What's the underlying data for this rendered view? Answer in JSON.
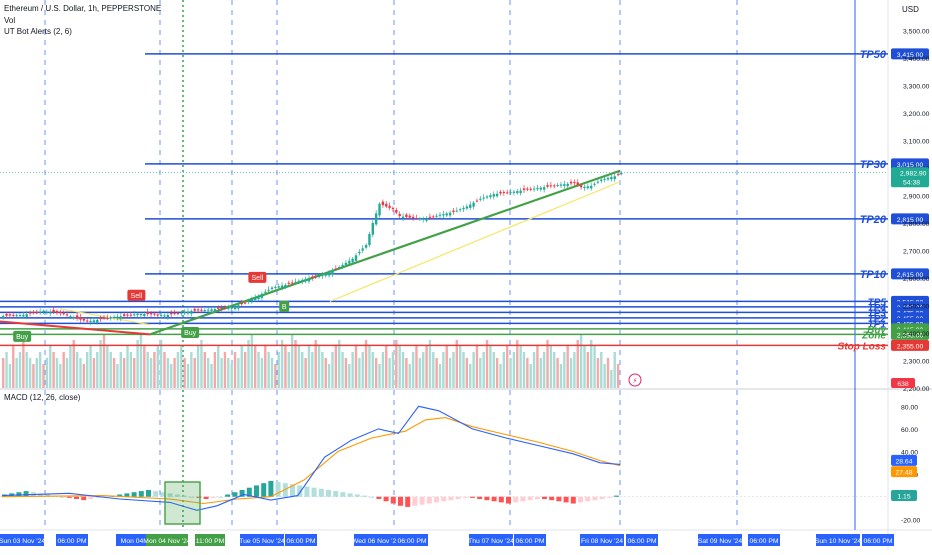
{
  "header": {
    "symbol": "Ethereum / U.S. Dollar, 1h, PEPPERSTONE",
    "vol": "Vol",
    "indicator": "UT Bot Alerts (2, 6)",
    "currency": "USD"
  },
  "chart_data": [
    {
      "type": "line",
      "title": "Ethereum / U.S. Dollar, 1h, PEPPERSTONE",
      "ylim": [
        2200,
        3560
      ],
      "y_ticks": [
        "3,500.00",
        "3,400.00",
        "3,300.00",
        "3,200.00",
        "3,100.00",
        "3,000.00",
        "2,900.00",
        "2,800.00",
        "2,700.00",
        "2,600.00",
        "2,500.00",
        "2,400.00",
        "2,300.00",
        "2,200.00"
      ],
      "x_labels": [
        "Sun 03 Nov '24",
        "06:00 PM",
        "Mon 04",
        "Mon 04 Nov '24",
        "11:00 PM",
        "Tue 05 Nov '24",
        "06:00 PM",
        "Wed 06 Nov '24",
        "06:00 PM",
        "Thu 07 Nov '24",
        "06:00 PM",
        "Fri 08 Nov '24",
        "06:00 PM",
        "Sat 09 Nov '24",
        "06:00 PM",
        "Sun 10 Nov '24",
        "06:00 PM"
      ],
      "price_series": [
        [
          0,
          2462
        ],
        [
          6,
          2466
        ],
        [
          12,
          2480
        ],
        [
          18,
          2470
        ],
        [
          22,
          2452
        ],
        [
          25,
          2442
        ],
        [
          28,
          2448
        ],
        [
          32,
          2457
        ],
        [
          36,
          2462
        ],
        [
          40,
          2470
        ],
        [
          44,
          2468
        ],
        [
          48,
          2464
        ],
        [
          52,
          2472
        ],
        [
          56,
          2480
        ],
        [
          60,
          2484
        ],
        [
          64,
          2488
        ],
        [
          68,
          2492
        ],
        [
          72,
          2510
        ],
        [
          76,
          2535
        ],
        [
          80,
          2565
        ],
        [
          84,
          2575
        ],
        [
          88,
          2590
        ],
        [
          92,
          2600
        ],
        [
          96,
          2614
        ],
        [
          100,
          2640
        ],
        [
          104,
          2670
        ],
        [
          108,
          2720
        ],
        [
          110,
          2800
        ],
        [
          112,
          2870
        ],
        [
          114,
          2860
        ],
        [
          116,
          2850
        ],
        [
          118,
          2825
        ],
        [
          122,
          2818
        ],
        [
          126,
          2815
        ],
        [
          130,
          2830
        ],
        [
          134,
          2840
        ],
        [
          138,
          2860
        ],
        [
          142,
          2888
        ],
        [
          146,
          2905
        ],
        [
          150,
          2910
        ],
        [
          154,
          2918
        ],
        [
          158,
          2925
        ],
        [
          162,
          2932
        ],
        [
          166,
          2940
        ],
        [
          170,
          2945
        ],
        [
          172,
          2930
        ],
        [
          175,
          2935
        ],
        [
          178,
          2958
        ],
        [
          182,
          2970
        ],
        [
          184,
          2982
        ]
      ],
      "volume_series": [
        5,
        6,
        4,
        7,
        5,
        6,
        8,
        6,
        5,
        4,
        5,
        6,
        4,
        5,
        7,
        6,
        5,
        4,
        6,
        5,
        7,
        8,
        6,
        5,
        4,
        6,
        7,
        5,
        6,
        8,
        9,
        7,
        6,
        5,
        4,
        6,
        5,
        7,
        6,
        5,
        8,
        9,
        7,
        6,
        5,
        6,
        7,
        8,
        6,
        5,
        4,
        5,
        6,
        7,
        5,
        4,
        6,
        5,
        7,
        8,
        6,
        5,
        4,
        6,
        7,
        5,
        6,
        5,
        4,
        6,
        5,
        7,
        6,
        8,
        9,
        7,
        6,
        5,
        7,
        6,
        5,
        4,
        6,
        8,
        7,
        6,
        9,
        8,
        7,
        6,
        5,
        7,
        6,
        8,
        7,
        6,
        5,
        4,
        6,
        7,
        8,
        6,
        5,
        4,
        6,
        7,
        5,
        6,
        8,
        7,
        6,
        5,
        4,
        6,
        7,
        5,
        6,
        8,
        7,
        6,
        5,
        4,
        6,
        7,
        5,
        6,
        7,
        8,
        6,
        5,
        4,
        6,
        7,
        5,
        6,
        8,
        7,
        6,
        5,
        4,
        6,
        7,
        5,
        6,
        8,
        7,
        6,
        5,
        4,
        6,
        7,
        5,
        6,
        8,
        7,
        6,
        5,
        4,
        6,
        7,
        5,
        6,
        8,
        7,
        6,
        5,
        4,
        6,
        7,
        5,
        6,
        8,
        9,
        7,
        6,
        8,
        7,
        5,
        6,
        4,
        5,
        3,
        6,
        4
      ],
      "levels": [
        {
          "name": "TP50",
          "value": 3415,
          "price": "3,415.00"
        },
        {
          "name": "TP30",
          "value": 3015,
          "price": "3,015.00"
        },
        {
          "name": "TP20",
          "value": 2815,
          "price": "2,815.00"
        },
        {
          "name": "TP10",
          "value": 2615,
          "price": "2,615.00"
        },
        {
          "name": "TP5",
          "value": 2515,
          "price": "2,515.00"
        },
        {
          "name": "TP4",
          "value": 2495,
          "price": "2,495.00"
        },
        {
          "name": "TP3",
          "value": 2475,
          "price": "2,475.00"
        },
        {
          "name": "TP2",
          "value": 2455,
          "price": "2,455.00"
        },
        {
          "name": "TP1",
          "value": 2435,
          "price": "2,435.00"
        },
        {
          "name": "Buy",
          "value": 2415,
          "price": "2,415.00"
        },
        {
          "name": "Zone",
          "value": 2395,
          "price": "2,395.00"
        },
        {
          "name": "Stop Loss",
          "value": 2355,
          "price": "2,355.00"
        }
      ],
      "current_price": "2,982.90",
      "countdown": "54:38",
      "volume_value": "638",
      "signals": [
        {
          "label": "Buy",
          "bar": 6,
          "dir": "buy"
        },
        {
          "label": "Sell",
          "bar": 40,
          "dir": "sell"
        },
        {
          "label": "Buy",
          "bar": 56,
          "dir": "buy"
        },
        {
          "label": "Sell",
          "bar": 76,
          "dir": "sell"
        },
        {
          "label": "B",
          "bar": 84,
          "dir": "buy"
        }
      ]
    },
    {
      "type": "line",
      "title": "MACD (12, 26, close)",
      "ylim": [
        -25,
        90
      ],
      "y_ticks": [
        "80.00",
        "60.00",
        "40.00",
        "20.00",
        "-20.00"
      ],
      "macd_value": "28.64",
      "signal_value": "27.48",
      "hist_value": "1.15",
      "macd_line": [
        [
          0,
          1
        ],
        [
          20,
          3
        ],
        [
          35,
          -2
        ],
        [
          50,
          -5
        ],
        [
          58,
          -12
        ],
        [
          64,
          -8
        ],
        [
          72,
          2
        ],
        [
          80,
          -3
        ],
        [
          88,
          1
        ],
        [
          96,
          35
        ],
        [
          104,
          50
        ],
        [
          112,
          60
        ],
        [
          118,
          56
        ],
        [
          124,
          80
        ],
        [
          130,
          76
        ],
        [
          140,
          60
        ],
        [
          150,
          52
        ],
        [
          160,
          45
        ],
        [
          170,
          38
        ],
        [
          178,
          30
        ],
        [
          184,
          28.6
        ]
      ],
      "signal_line": [
        [
          0,
          0
        ],
        [
          30,
          1
        ],
        [
          50,
          -2
        ],
        [
          60,
          -6
        ],
        [
          70,
          -2
        ],
        [
          80,
          0
        ],
        [
          90,
          15
        ],
        [
          100,
          40
        ],
        [
          110,
          52
        ],
        [
          120,
          58
        ],
        [
          126,
          68
        ],
        [
          132,
          70
        ],
        [
          140,
          62
        ],
        [
          150,
          55
        ],
        [
          160,
          48
        ],
        [
          170,
          40
        ],
        [
          178,
          32
        ],
        [
          184,
          27.5
        ]
      ],
      "histogram": [
        2,
        3,
        4,
        5,
        4,
        3,
        2,
        1,
        0,
        -1,
        -2,
        -3,
        -2,
        -1,
        0,
        1,
        2,
        3,
        4,
        5,
        6,
        5,
        4,
        3,
        2,
        1,
        0,
        -1,
        -2,
        -1,
        0,
        2,
        4,
        6,
        8,
        10,
        12,
        14,
        13,
        12,
        11,
        10,
        9,
        8,
        7,
        6,
        5,
        4,
        3,
        2,
        1,
        0,
        -2,
        -4,
        -6,
        -8,
        -9,
        -8,
        -7,
        -6,
        -5,
        -4,
        -3,
        -2,
        -1,
        -1,
        -2,
        -3,
        -4,
        -5,
        -6,
        -5,
        -4,
        -3,
        -2,
        -2,
        -3,
        -4,
        -5,
        -6,
        -5,
        -4,
        -3,
        -2,
        -1,
        1
      ]
    }
  ]
}
